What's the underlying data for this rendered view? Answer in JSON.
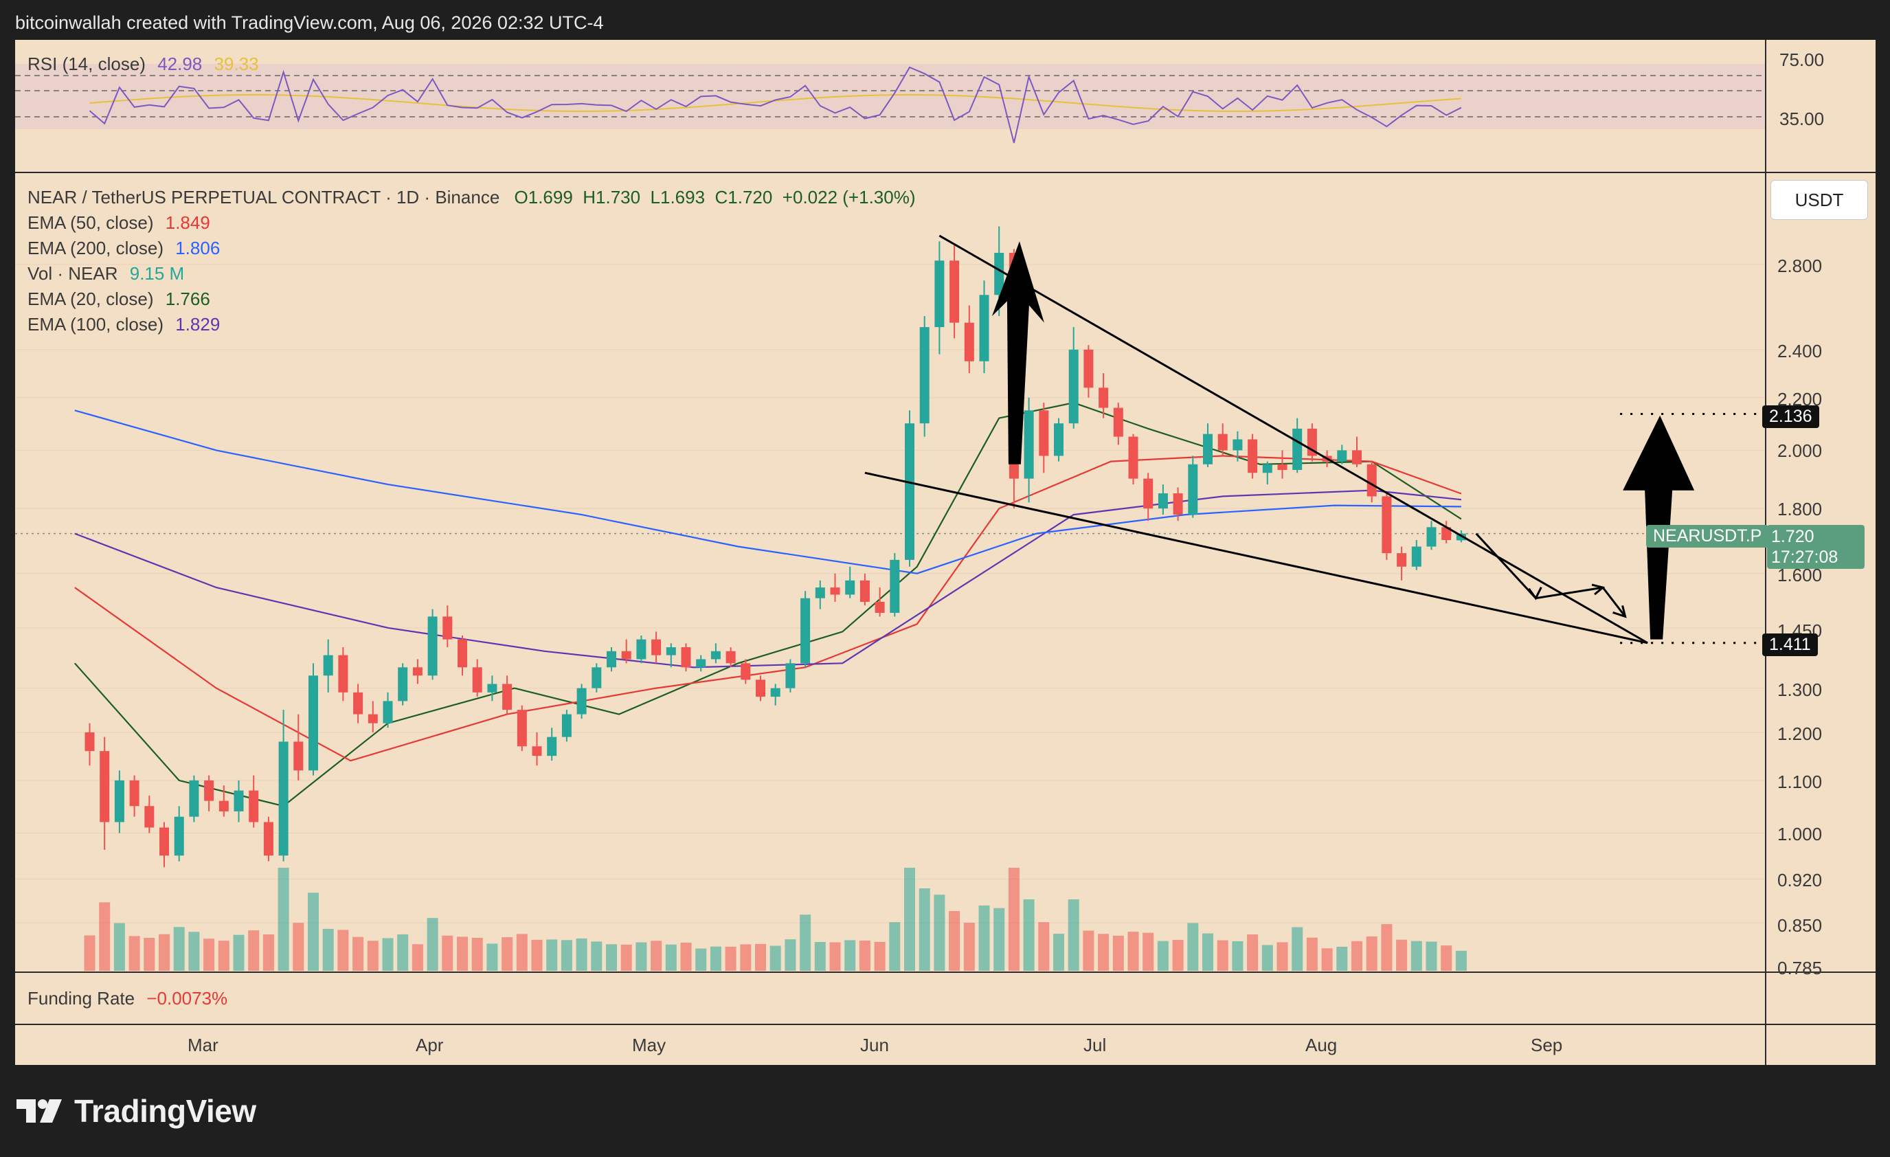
{
  "header": {
    "credit": "bitcoinwallah created with TradingView.com, Aug 06, 2026 02:32 UTC-4"
  },
  "rsi": {
    "title": "RSI (14, close)",
    "value1": "42.98",
    "value2": "39.33",
    "levels": [
      "75.00",
      "35.00"
    ]
  },
  "legend": {
    "symbol": "NEAR / TetherUS PERPETUAL CONTRACT · 1D · Binance",
    "ohlc": "O1.699  H1.730  L1.693  C1.720  +0.022 (+1.30%)",
    "indicators": [
      {
        "name": "EMA (50, close)",
        "value": "1.849",
        "color": "#e53935"
      },
      {
        "name": "EMA (200, close)",
        "value": "1.806",
        "color": "#2962ff"
      },
      {
        "name": "Vol · NEAR",
        "value": "9.15 M",
        "color": "#26a69a"
      },
      {
        "name": "EMA (20, close)",
        "value": "1.766",
        "color": "#1b5e20"
      },
      {
        "name": "EMA (100, close)",
        "value": "1.829",
        "color": "#5e35b1"
      }
    ]
  },
  "currency": "USDT",
  "price_axis": [
    "2.800",
    "2.400",
    "2.200",
    "2.000",
    "1.800",
    "1.600",
    "1.450",
    "1.300",
    "1.200",
    "1.100",
    "1.000",
    "0.920",
    "0.850",
    "0.785"
  ],
  "markers": {
    "target_high": "2.136",
    "target_low": "1.411",
    "symbol_tag": "NEARUSDT.P",
    "last_price": "1.720",
    "countdown": "17:27:08"
  },
  "funding": {
    "label": "Funding Rate",
    "value": "−0.0073%"
  },
  "time_axis": [
    "Mar",
    "Apr",
    "May",
    "Jun",
    "Jul",
    "Aug",
    "Sep"
  ],
  "brand": "TradingView",
  "colors": {
    "up": "#26a69a",
    "down": "#ef5350",
    "panel_bg": "#f3dfc6",
    "rsi_line": "#7e57c2",
    "rsi_ma": "#e6c23a"
  },
  "chart_data": {
    "type": "candlestick",
    "symbol": "NEARUSDT.P",
    "interval": "1D",
    "x_range": [
      "2026-02-01",
      "2026-09-30"
    ],
    "y_scale": "log",
    "y_range": [
      0.785,
      3.1
    ],
    "candles": [
      {
        "date": "2026-02-03",
        "o": 1.2,
        "h": 1.22,
        "l": 1.13,
        "c": 1.16
      },
      {
        "date": "2026-02-05",
        "o": 1.16,
        "h": 1.19,
        "l": 0.97,
        "c": 1.02
      },
      {
        "date": "2026-02-07",
        "o": 1.02,
        "h": 1.12,
        "l": 1.0,
        "c": 1.1
      },
      {
        "date": "2026-02-09",
        "o": 1.1,
        "h": 1.11,
        "l": 1.03,
        "c": 1.05
      },
      {
        "date": "2026-02-11",
        "o": 1.05,
        "h": 1.07,
        "l": 1.0,
        "c": 1.01
      },
      {
        "date": "2026-02-13",
        "o": 1.01,
        "h": 1.02,
        "l": 0.94,
        "c": 0.96
      },
      {
        "date": "2026-02-15",
        "o": 0.96,
        "h": 1.05,
        "l": 0.95,
        "c": 1.03
      },
      {
        "date": "2026-02-17",
        "o": 1.03,
        "h": 1.11,
        "l": 1.02,
        "c": 1.1
      },
      {
        "date": "2026-02-19",
        "o": 1.1,
        "h": 1.11,
        "l": 1.04,
        "c": 1.06
      },
      {
        "date": "2026-02-21",
        "o": 1.06,
        "h": 1.09,
        "l": 1.03,
        "c": 1.04
      },
      {
        "date": "2026-02-23",
        "o": 1.04,
        "h": 1.1,
        "l": 1.02,
        "c": 1.08
      },
      {
        "date": "2026-02-25",
        "o": 1.08,
        "h": 1.11,
        "l": 1.01,
        "c": 1.02
      },
      {
        "date": "2026-02-27",
        "o": 1.02,
        "h": 1.03,
        "l": 0.95,
        "c": 0.96
      },
      {
        "date": "2026-03-01",
        "o": 0.96,
        "h": 1.25,
        "l": 0.95,
        "c": 1.18
      },
      {
        "date": "2026-03-03",
        "o": 1.18,
        "h": 1.24,
        "l": 1.1,
        "c": 1.12
      },
      {
        "date": "2026-03-05",
        "o": 1.12,
        "h": 1.36,
        "l": 1.11,
        "c": 1.33
      },
      {
        "date": "2026-03-07",
        "o": 1.33,
        "h": 1.42,
        "l": 1.29,
        "c": 1.38
      },
      {
        "date": "2026-03-09",
        "o": 1.38,
        "h": 1.4,
        "l": 1.27,
        "c": 1.29
      },
      {
        "date": "2026-03-11",
        "o": 1.29,
        "h": 1.31,
        "l": 1.22,
        "c": 1.24
      },
      {
        "date": "2026-03-13",
        "o": 1.24,
        "h": 1.27,
        "l": 1.2,
        "c": 1.22
      },
      {
        "date": "2026-03-15",
        "o": 1.22,
        "h": 1.29,
        "l": 1.21,
        "c": 1.27
      },
      {
        "date": "2026-03-17",
        "o": 1.27,
        "h": 1.36,
        "l": 1.26,
        "c": 1.35
      },
      {
        "date": "2026-03-19",
        "o": 1.35,
        "h": 1.37,
        "l": 1.31,
        "c": 1.33
      },
      {
        "date": "2026-03-21",
        "o": 1.33,
        "h": 1.5,
        "l": 1.32,
        "c": 1.48
      },
      {
        "date": "2026-03-23",
        "o": 1.48,
        "h": 1.51,
        "l": 1.4,
        "c": 1.42
      },
      {
        "date": "2026-03-25",
        "o": 1.42,
        "h": 1.43,
        "l": 1.33,
        "c": 1.35
      },
      {
        "date": "2026-03-27",
        "o": 1.35,
        "h": 1.37,
        "l": 1.28,
        "c": 1.29
      },
      {
        "date": "2026-03-29",
        "o": 1.29,
        "h": 1.33,
        "l": 1.27,
        "c": 1.31
      },
      {
        "date": "2026-03-31",
        "o": 1.31,
        "h": 1.33,
        "l": 1.24,
        "c": 1.25
      },
      {
        "date": "2026-04-02",
        "o": 1.25,
        "h": 1.26,
        "l": 1.16,
        "c": 1.17
      },
      {
        "date": "2026-04-04",
        "o": 1.17,
        "h": 1.2,
        "l": 1.13,
        "c": 1.15
      },
      {
        "date": "2026-04-06",
        "o": 1.15,
        "h": 1.21,
        "l": 1.14,
        "c": 1.19
      },
      {
        "date": "2026-04-08",
        "o": 1.19,
        "h": 1.25,
        "l": 1.18,
        "c": 1.24
      },
      {
        "date": "2026-04-10",
        "o": 1.24,
        "h": 1.31,
        "l": 1.23,
        "c": 1.3
      },
      {
        "date": "2026-04-12",
        "o": 1.3,
        "h": 1.36,
        "l": 1.29,
        "c": 1.35
      },
      {
        "date": "2026-04-14",
        "o": 1.35,
        "h": 1.4,
        "l": 1.34,
        "c": 1.39
      },
      {
        "date": "2026-04-16",
        "o": 1.39,
        "h": 1.42,
        "l": 1.36,
        "c": 1.37
      },
      {
        "date": "2026-04-18",
        "o": 1.37,
        "h": 1.43,
        "l": 1.36,
        "c": 1.42
      },
      {
        "date": "2026-04-20",
        "o": 1.42,
        "h": 1.44,
        "l": 1.36,
        "c": 1.38
      },
      {
        "date": "2026-04-22",
        "o": 1.38,
        "h": 1.41,
        "l": 1.35,
        "c": 1.4
      },
      {
        "date": "2026-04-24",
        "o": 1.4,
        "h": 1.41,
        "l": 1.34,
        "c": 1.35
      },
      {
        "date": "2026-04-26",
        "o": 1.35,
        "h": 1.38,
        "l": 1.34,
        "c": 1.37
      },
      {
        "date": "2026-04-28",
        "o": 1.37,
        "h": 1.41,
        "l": 1.36,
        "c": 1.39
      },
      {
        "date": "2026-04-30",
        "o": 1.39,
        "h": 1.4,
        "l": 1.35,
        "c": 1.36
      },
      {
        "date": "2026-05-02",
        "o": 1.36,
        "h": 1.37,
        "l": 1.31,
        "c": 1.32
      },
      {
        "date": "2026-05-04",
        "o": 1.32,
        "h": 1.33,
        "l": 1.27,
        "c": 1.28
      },
      {
        "date": "2026-05-06",
        "o": 1.28,
        "h": 1.31,
        "l": 1.26,
        "c": 1.3
      },
      {
        "date": "2026-05-08",
        "o": 1.3,
        "h": 1.37,
        "l": 1.29,
        "c": 1.36
      },
      {
        "date": "2026-05-10",
        "o": 1.36,
        "h": 1.55,
        "l": 1.35,
        "c": 1.53
      },
      {
        "date": "2026-05-12",
        "o": 1.53,
        "h": 1.58,
        "l": 1.5,
        "c": 1.56
      },
      {
        "date": "2026-05-14",
        "o": 1.56,
        "h": 1.6,
        "l": 1.52,
        "c": 1.54
      },
      {
        "date": "2026-05-16",
        "o": 1.54,
        "h": 1.62,
        "l": 1.53,
        "c": 1.58
      },
      {
        "date": "2026-05-18",
        "o": 1.58,
        "h": 1.6,
        "l": 1.51,
        "c": 1.52
      },
      {
        "date": "2026-05-20",
        "o": 1.52,
        "h": 1.56,
        "l": 1.48,
        "c": 1.49
      },
      {
        "date": "2026-05-22",
        "o": 1.49,
        "h": 1.66,
        "l": 1.48,
        "c": 1.64
      },
      {
        "date": "2026-05-24",
        "o": 1.64,
        "h": 2.15,
        "l": 1.62,
        "c": 2.1
      },
      {
        "date": "2026-05-26",
        "o": 2.1,
        "h": 2.55,
        "l": 2.05,
        "c": 2.5
      },
      {
        "date": "2026-05-28",
        "o": 2.5,
        "h": 2.92,
        "l": 2.38,
        "c": 2.82
      },
      {
        "date": "2026-05-30",
        "o": 2.82,
        "h": 2.9,
        "l": 2.45,
        "c": 2.52
      },
      {
        "date": "2026-06-01",
        "o": 2.52,
        "h": 2.6,
        "l": 2.3,
        "c": 2.35
      },
      {
        "date": "2026-06-03",
        "o": 2.35,
        "h": 2.72,
        "l": 2.3,
        "c": 2.65
      },
      {
        "date": "2026-06-05",
        "o": 2.65,
        "h": 3.0,
        "l": 2.55,
        "c": 2.86
      },
      {
        "date": "2026-06-07",
        "o": 2.86,
        "h": 2.88,
        "l": 1.8,
        "c": 1.9
      },
      {
        "date": "2026-06-09",
        "o": 1.9,
        "h": 2.2,
        "l": 1.82,
        "c": 2.15
      },
      {
        "date": "2026-06-11",
        "o": 2.15,
        "h": 2.18,
        "l": 1.92,
        "c": 1.98
      },
      {
        "date": "2026-06-13",
        "o": 1.98,
        "h": 2.12,
        "l": 1.96,
        "c": 2.1
      },
      {
        "date": "2026-06-15",
        "o": 2.1,
        "h": 2.5,
        "l": 2.08,
        "c": 2.4
      },
      {
        "date": "2026-06-17",
        "o": 2.4,
        "h": 2.42,
        "l": 2.2,
        "c": 2.24
      },
      {
        "date": "2026-06-19",
        "o": 2.24,
        "h": 2.3,
        "l": 2.12,
        "c": 2.16
      },
      {
        "date": "2026-06-21",
        "o": 2.16,
        "h": 2.18,
        "l": 2.02,
        "c": 2.05
      },
      {
        "date": "2026-06-23",
        "o": 2.05,
        "h": 2.06,
        "l": 1.88,
        "c": 1.9
      },
      {
        "date": "2026-06-25",
        "o": 1.9,
        "h": 1.92,
        "l": 1.76,
        "c": 1.8
      },
      {
        "date": "2026-06-27",
        "o": 1.8,
        "h": 1.88,
        "l": 1.78,
        "c": 1.85
      },
      {
        "date": "2026-06-29",
        "o": 1.85,
        "h": 1.87,
        "l": 1.76,
        "c": 1.78
      },
      {
        "date": "2026-07-01",
        "o": 1.78,
        "h": 1.98,
        "l": 1.77,
        "c": 1.95
      },
      {
        "date": "2026-07-03",
        "o": 1.95,
        "h": 2.1,
        "l": 1.94,
        "c": 2.06
      },
      {
        "date": "2026-07-05",
        "o": 2.06,
        "h": 2.1,
        "l": 1.98,
        "c": 2.0
      },
      {
        "date": "2026-07-07",
        "o": 2.0,
        "h": 2.07,
        "l": 1.96,
        "c": 2.04
      },
      {
        "date": "2026-07-09",
        "o": 2.04,
        "h": 2.06,
        "l": 1.9,
        "c": 1.92
      },
      {
        "date": "2026-07-11",
        "o": 1.92,
        "h": 1.96,
        "l": 1.88,
        "c": 1.95
      },
      {
        "date": "2026-07-13",
        "o": 1.95,
        "h": 2.0,
        "l": 1.9,
        "c": 1.93
      },
      {
        "date": "2026-07-15",
        "o": 1.93,
        "h": 2.12,
        "l": 1.92,
        "c": 2.08
      },
      {
        "date": "2026-07-17",
        "o": 2.08,
        "h": 2.1,
        "l": 1.96,
        "c": 1.98
      },
      {
        "date": "2026-07-19",
        "o": 1.98,
        "h": 2.0,
        "l": 1.94,
        "c": 1.96
      },
      {
        "date": "2026-07-21",
        "o": 1.96,
        "h": 2.02,
        "l": 1.95,
        "c": 2.0
      },
      {
        "date": "2026-07-23",
        "o": 2.0,
        "h": 2.05,
        "l": 1.94,
        "c": 1.95
      },
      {
        "date": "2026-07-25",
        "o": 1.95,
        "h": 1.96,
        "l": 1.82,
        "c": 1.84
      },
      {
        "date": "2026-07-27",
        "o": 1.84,
        "h": 1.85,
        "l": 1.64,
        "c": 1.66
      },
      {
        "date": "2026-07-29",
        "o": 1.66,
        "h": 1.68,
        "l": 1.58,
        "c": 1.62
      },
      {
        "date": "2026-07-31",
        "o": 1.62,
        "h": 1.7,
        "l": 1.61,
        "c": 1.68
      },
      {
        "date": "2026-08-02",
        "o": 1.68,
        "h": 1.76,
        "l": 1.67,
        "c": 1.74
      },
      {
        "date": "2026-08-04",
        "o": 1.74,
        "h": 1.76,
        "l": 1.69,
        "c": 1.7
      },
      {
        "date": "2026-08-06",
        "o": 1.699,
        "h": 1.73,
        "l": 1.693,
        "c": 1.72
      }
    ],
    "ema_series": [
      {
        "name": "EMA (20, close)",
        "color": "#1b5e20",
        "points": [
          [
            "2026-02-01",
            1.36
          ],
          [
            "2026-02-15",
            1.1
          ],
          [
            "2026-03-01",
            1.05
          ],
          [
            "2026-03-15",
            1.22
          ],
          [
            "2026-04-01",
            1.3
          ],
          [
            "2026-04-15",
            1.24
          ],
          [
            "2026-05-01",
            1.36
          ],
          [
            "2026-05-15",
            1.44
          ],
          [
            "2026-05-25",
            1.62
          ],
          [
            "2026-06-05",
            2.12
          ],
          [
            "2026-06-15",
            2.18
          ],
          [
            "2026-06-25",
            2.08
          ],
          [
            "2026-07-10",
            1.95
          ],
          [
            "2026-07-25",
            1.96
          ],
          [
            "2026-08-06",
            1.766
          ]
        ]
      },
      {
        "name": "EMA (50, close)",
        "color": "#e53935",
        "points": [
          [
            "2026-02-01",
            1.56
          ],
          [
            "2026-02-20",
            1.3
          ],
          [
            "2026-03-10",
            1.14
          ],
          [
            "2026-03-31",
            1.24
          ],
          [
            "2026-04-20",
            1.3
          ],
          [
            "2026-05-10",
            1.35
          ],
          [
            "2026-05-25",
            1.46
          ],
          [
            "2026-06-05",
            1.8
          ],
          [
            "2026-06-20",
            1.96
          ],
          [
            "2026-07-05",
            1.98
          ],
          [
            "2026-07-25",
            1.96
          ],
          [
            "2026-08-06",
            1.849
          ]
        ]
      },
      {
        "name": "EMA (100, close)",
        "color": "#5e35b1",
        "points": [
          [
            "2026-02-01",
            1.72
          ],
          [
            "2026-02-20",
            1.56
          ],
          [
            "2026-03-15",
            1.45
          ],
          [
            "2026-04-05",
            1.39
          ],
          [
            "2026-04-25",
            1.35
          ],
          [
            "2026-05-15",
            1.36
          ],
          [
            "2026-05-30",
            1.55
          ],
          [
            "2026-06-15",
            1.78
          ],
          [
            "2026-07-05",
            1.84
          ],
          [
            "2026-07-25",
            1.86
          ],
          [
            "2026-08-06",
            1.829
          ]
        ]
      },
      {
        "name": "EMA (200, close)",
        "color": "#2962ff",
        "points": [
          [
            "2026-02-01",
            2.15
          ],
          [
            "2026-02-20",
            2.0
          ],
          [
            "2026-03-15",
            1.88
          ],
          [
            "2026-04-10",
            1.78
          ],
          [
            "2026-05-01",
            1.68
          ],
          [
            "2026-05-25",
            1.6
          ],
          [
            "2026-06-10",
            1.72
          ],
          [
            "2026-06-30",
            1.78
          ],
          [
            "2026-07-20",
            1.81
          ],
          [
            "2026-08-06",
            1.806
          ]
        ]
      }
    ],
    "trendlines": [
      {
        "name": "upper",
        "from": [
          "2026-05-28",
          2.95
        ],
        "to": [
          "2026-08-31",
          1.411
        ]
      },
      {
        "name": "lower",
        "from": [
          "2026-05-18",
          1.92
        ],
        "to": [
          "2026-08-31",
          1.411
        ]
      }
    ],
    "levels": [
      2.136,
      1.411
    ],
    "last_price": 1.72,
    "funding_rate": "−0.0073%"
  }
}
